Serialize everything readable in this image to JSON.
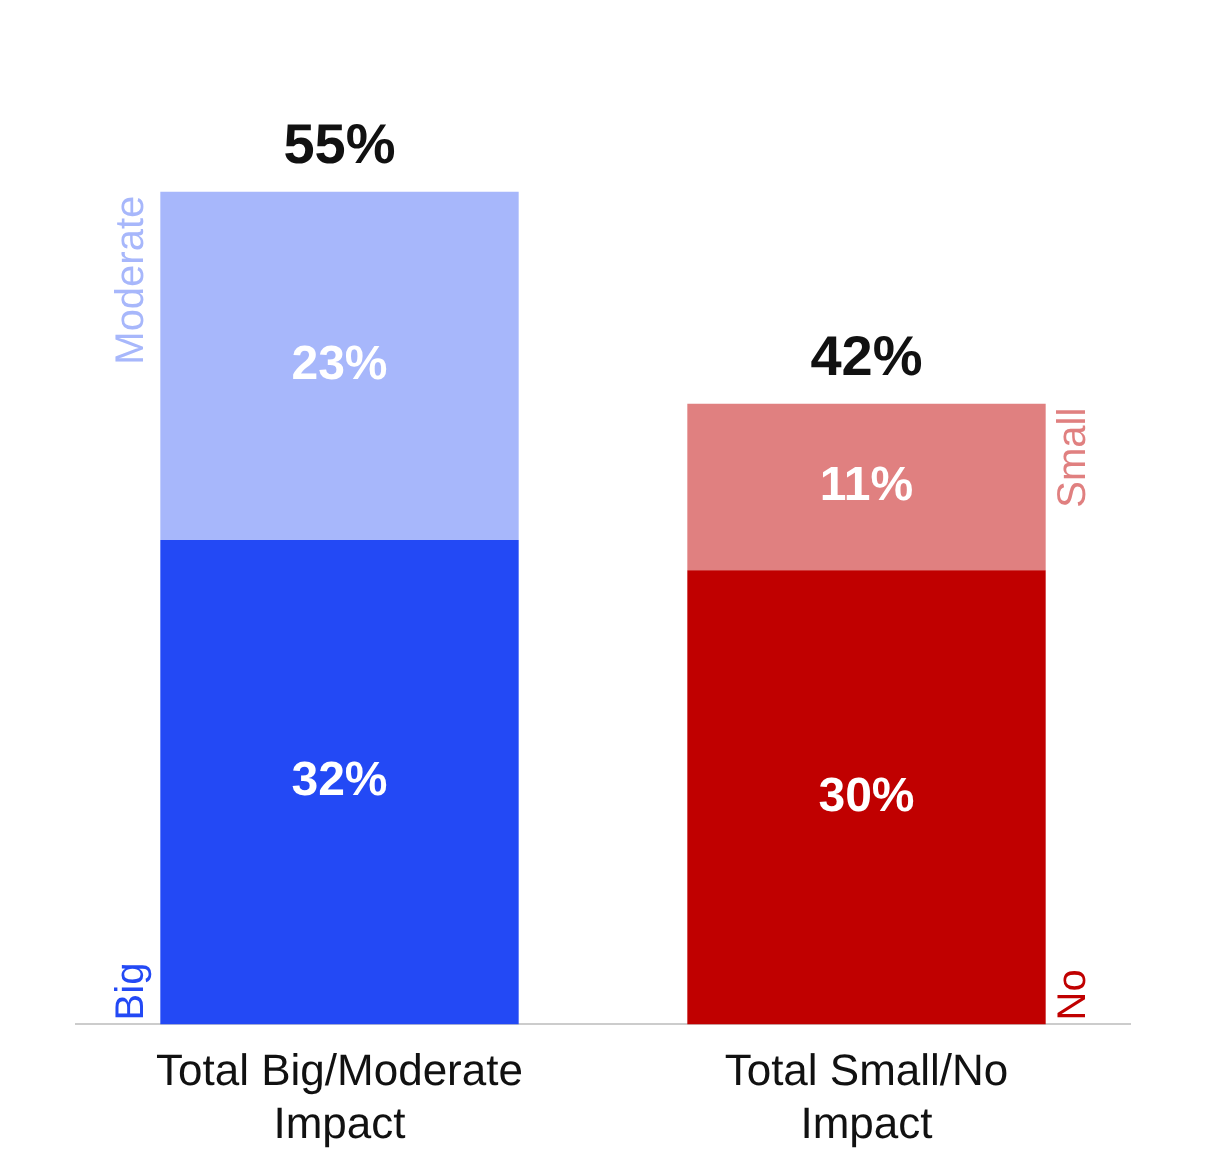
{
  "chart_data": {
    "type": "bar",
    "stacked": true,
    "categories": [
      "Total Big/Moderate Impact",
      "Total Small/No Impact"
    ],
    "series": [
      {
        "name": "Big",
        "color": "#2349f5",
        "values": [
          32,
          null
        ],
        "value_labels": [
          "32%",
          null
        ]
      },
      {
        "name": "Moderate",
        "color": "#a7b7fb",
        "values": [
          23,
          null
        ],
        "value_labels": [
          "23%",
          null
        ]
      },
      {
        "name": "No",
        "color": "#c00000",
        "values": [
          null,
          30
        ],
        "value_labels": [
          null,
          "30%"
        ]
      },
      {
        "name": "Small",
        "color": "#e08080",
        "values": [
          null,
          11
        ],
        "value_labels": [
          null,
          "11%"
        ]
      }
    ],
    "totals": [
      "55%",
      "42%"
    ],
    "legend": false,
    "grid": false
  }
}
